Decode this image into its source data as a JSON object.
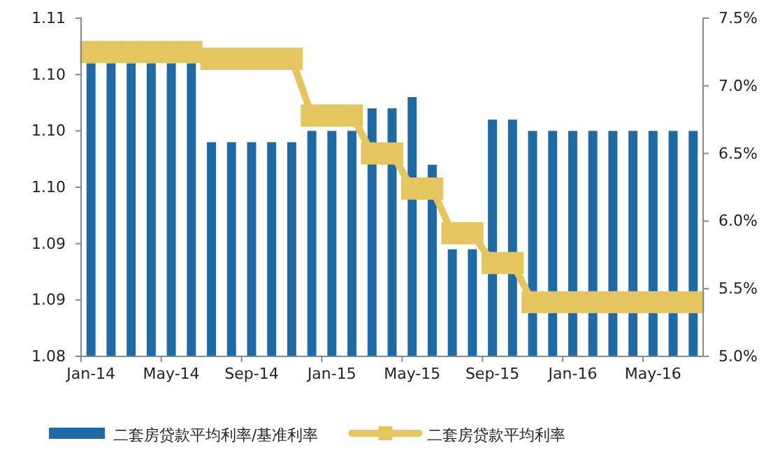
{
  "chart_data": {
    "type": "bar",
    "categories": [
      "Jan-14",
      null,
      null,
      null,
      "May-14",
      null,
      null,
      null,
      "Sep-14",
      null,
      null,
      null,
      "Jan-15",
      null,
      null,
      null,
      "May-15",
      null,
      null,
      null,
      "Sep-15",
      null,
      null,
      null,
      "Jan-16",
      null,
      null,
      null,
      "May-16",
      null,
      null
    ],
    "series": [
      {
        "name": "二套房贷款平均利率/基准利率",
        "color": "#1f6aa5",
        "values": [
          1.106,
          1.106,
          1.106,
          1.106,
          1.106,
          1.106,
          1.099,
          1.099,
          1.099,
          1.099,
          1.099,
          1.1,
          1.1,
          1.1,
          1.102,
          1.102,
          1.103,
          1.097,
          1.0895,
          1.0895,
          1.101,
          1.101,
          1.1,
          1.1,
          1.1,
          1.1,
          1.1,
          1.1,
          1.1,
          1.1,
          1.1
        ]
      },
      {
        "name": "二套房贷款平均利率",
        "type": "line",
        "axis": "y2",
        "color": "#e5c55f",
        "marker": "square",
        "values": [
          7.25,
          7.25,
          7.25,
          7.25,
          7.25,
          7.25,
          7.2,
          7.2,
          7.2,
          7.2,
          7.2,
          6.78,
          6.78,
          6.78,
          6.5,
          6.5,
          6.24,
          6.24,
          5.91,
          5.91,
          5.69,
          5.69,
          5.4,
          5.4,
          5.4,
          5.4,
          5.4,
          5.4,
          5.4,
          5.4,
          5.4
        ]
      }
    ],
    "ylim": [
      1.08,
      1.11
    ],
    "yticks": [
      {
        "value": 1.08,
        "label": "1.08"
      },
      {
        "value": 1.085,
        "label": "1.09"
      },
      {
        "value": 1.09,
        "label": "1.09"
      },
      {
        "value": 1.095,
        "label": "1.10"
      },
      {
        "value": 1.1,
        "label": "1.10"
      },
      {
        "value": 1.105,
        "label": "1.10"
      },
      {
        "value": 1.11,
        "label": "1.11"
      }
    ],
    "y2lim": [
      5.0,
      7.5
    ],
    "y2ticks": [
      {
        "value": 5.0,
        "label": "5.0%"
      },
      {
        "value": 5.5,
        "label": "5.5%"
      },
      {
        "value": 6.0,
        "label": "6.0%"
      },
      {
        "value": 6.5,
        "label": "6.5%"
      },
      {
        "value": 7.0,
        "label": "7.0%"
      },
      {
        "value": 7.5,
        "label": "7.5%"
      }
    ],
    "grid": false,
    "legend": "bottom"
  }
}
